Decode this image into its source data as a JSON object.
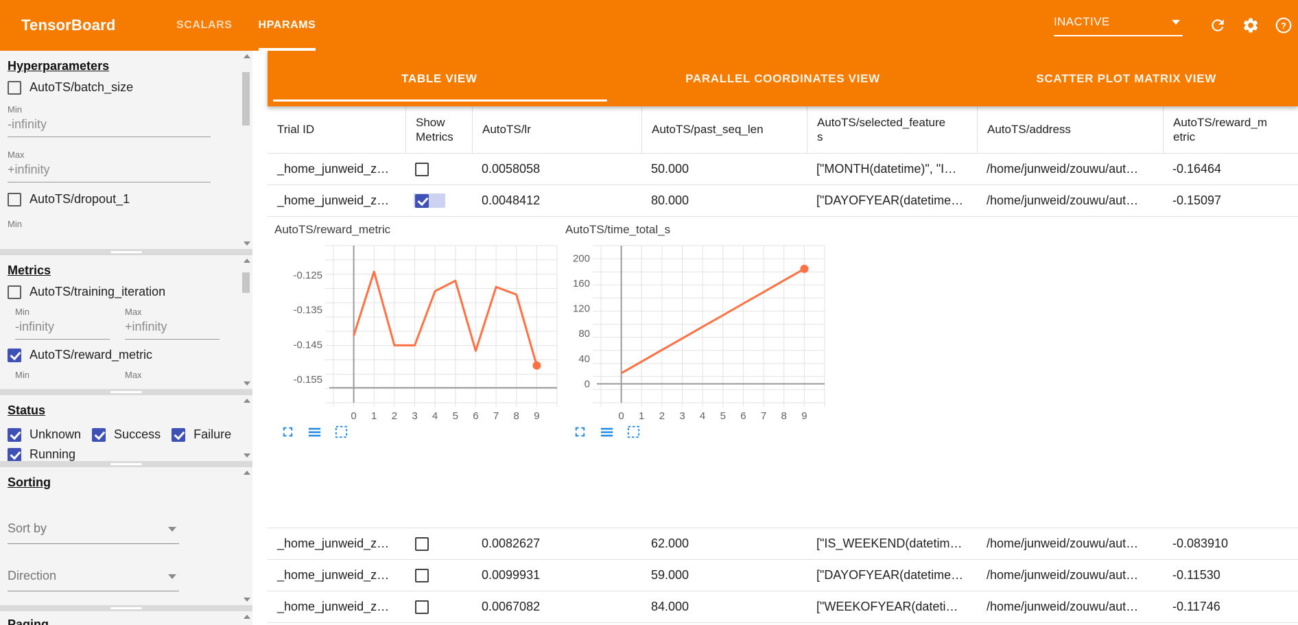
{
  "header": {
    "title": "TensorBoard",
    "nav_tabs": [
      {
        "label": "SCALARS",
        "active": false
      },
      {
        "label": "HPARAMS",
        "active": true
      }
    ],
    "run_selector": {
      "value": "INACTIVE"
    },
    "icon_names": [
      "dropdown-caret-icon",
      "refresh-icon",
      "settings-gear-icon",
      "help-icon"
    ]
  },
  "sidebar": {
    "hyperparameters": {
      "title": "Hyperparameters",
      "items": [
        {
          "label": "AutoTS/batch_size",
          "checked": false
        },
        {
          "label": "AutoTS/dropout_1",
          "checked": false
        }
      ],
      "batch_size_min": {
        "label": "Min",
        "value": "-infinity"
      },
      "batch_size_max": {
        "label": "Max",
        "value": "+infinity"
      },
      "dropout_min_label": "Min"
    },
    "metrics": {
      "title": "Metrics",
      "items": [
        {
          "label": "AutoTS/training_iteration",
          "checked": false
        },
        {
          "label": "AutoTS/reward_metric",
          "checked": true
        }
      ],
      "training_iteration_min": {
        "label": "Min",
        "value": "-infinity"
      },
      "training_iteration_max": {
        "label": "Max",
        "value": "+infinity"
      },
      "reward_metric_min_label": "Min",
      "reward_metric_max_label": "Max"
    },
    "status": {
      "title": "Status",
      "items": [
        {
          "label": "Unknown",
          "checked": true
        },
        {
          "label": "Success",
          "checked": true
        },
        {
          "label": "Failure",
          "checked": true
        },
        {
          "label": "Running",
          "checked": true
        }
      ]
    },
    "sorting": {
      "title": "Sorting",
      "sort_by_label": "Sort by",
      "direction_label": "Direction"
    },
    "paging": {
      "title": "Paging"
    }
  },
  "view_tabs": [
    {
      "label": "TABLE VIEW",
      "active": true
    },
    {
      "label": "PARALLEL COORDINATES VIEW",
      "active": false
    },
    {
      "label": "SCATTER PLOT MATRIX VIEW",
      "active": false
    }
  ],
  "table": {
    "columns": [
      "Trial ID",
      "Show Metrics",
      "AutoTS/lr",
      "AutoTS/past_seq_len",
      "AutoTS/selected_features",
      "AutoTS/address",
      "AutoTS/reward_metric"
    ],
    "rows": [
      {
        "trial_id": "_home_junweid_z…",
        "show_metrics": false,
        "lr": "0.0058058",
        "past_seq_len": "50.000",
        "selected_features": "[\"MONTH(datetime)\", \"I…",
        "address": "/home/junweid/zouwu/aut…",
        "reward_metric": "-0.16464"
      },
      {
        "trial_id": "_home_junweid_z…",
        "show_metrics": true,
        "lr": "0.0048412",
        "past_seq_len": "80.000",
        "selected_features": "[\"DAYOFYEAR(datetime…",
        "address": "/home/junweid/zouwu/aut…",
        "reward_metric": "-0.15097"
      },
      {
        "trial_id": "_home_junweid_z…",
        "show_metrics": false,
        "lr": "0.0082627",
        "past_seq_len": "62.000",
        "selected_features": "[\"IS_WEEKEND(datetim…",
        "address": "/home/junweid/zouwu/aut…",
        "reward_metric": "-0.083910"
      },
      {
        "trial_id": "_home_junweid_z…",
        "show_metrics": false,
        "lr": "0.0099931",
        "past_seq_len": "59.000",
        "selected_features": "[\"DAYOFYEAR(datetime…",
        "address": "/home/junweid/zouwu/aut…",
        "reward_metric": "-0.11530"
      },
      {
        "trial_id": "_home_junweid_z…",
        "show_metrics": false,
        "lr": "0.0067082",
        "past_seq_len": "84.000",
        "selected_features": "[\"WEEKOFYEAR(dateti…",
        "address": "/home/junweid/zouwu/aut…",
        "reward_metric": "-0.11746"
      }
    ]
  },
  "chart_data": [
    {
      "type": "line",
      "title": "AutoTS/reward_metric",
      "x": [
        0,
        1,
        2,
        3,
        4,
        5,
        6,
        7,
        8,
        9
      ],
      "values": [
        -0.1424,
        -0.124,
        -0.1452,
        -0.1452,
        -0.1296,
        -0.1266,
        -0.1468,
        -0.1284,
        -0.1306,
        -0.151
      ],
      "xlim": [
        -1.2,
        10
      ],
      "ylim": [
        -0.1617,
        -0.1165
      ],
      "y_ticks": [
        {
          "v": -0.125,
          "label": "-0.125"
        },
        {
          "v": -0.135,
          "label": "-0.135"
        },
        {
          "v": -0.145,
          "label": "-0.145"
        },
        {
          "v": -0.155,
          "label": "-0.155"
        }
      ],
      "x_axis_value": -0.1574,
      "h_gridlines": 11,
      "grid": true,
      "legend": "none",
      "line_color": "#ff7043",
      "end_marker": true
    },
    {
      "type": "line",
      "title": "AutoTS/time_total_s",
      "x": [
        0,
        1,
        2,
        3,
        4,
        5,
        6,
        7,
        8,
        9
      ],
      "values": [
        17,
        35.4,
        53.9,
        72.3,
        90.8,
        109.2,
        127.7,
        146.1,
        164.6,
        183
      ],
      "xlim": [
        -1.2,
        10
      ],
      "ylim": [
        -30,
        220
      ],
      "y_ticks": [
        {
          "v": 200,
          "label": "200"
        },
        {
          "v": 160,
          "label": "160"
        },
        {
          "v": 120,
          "label": "120"
        },
        {
          "v": 80,
          "label": "80"
        },
        {
          "v": 40,
          "label": "40"
        },
        {
          "v": 0,
          "label": "0"
        }
      ],
      "x_axis_value": 0,
      "h_gridlines": 12,
      "grid": true,
      "legend": "none",
      "line_color": "#ff7043",
      "end_marker": true
    }
  ],
  "chart_toolbar_icons": [
    "fullscreen-icon",
    "data-table-icon",
    "selection-box-icon"
  ],
  "colors": {
    "brand_orange": "#f57c00",
    "accent_indigo": "#3f51b5",
    "chart_line": "#ff7043",
    "icon_blue": "#1e88e5"
  }
}
